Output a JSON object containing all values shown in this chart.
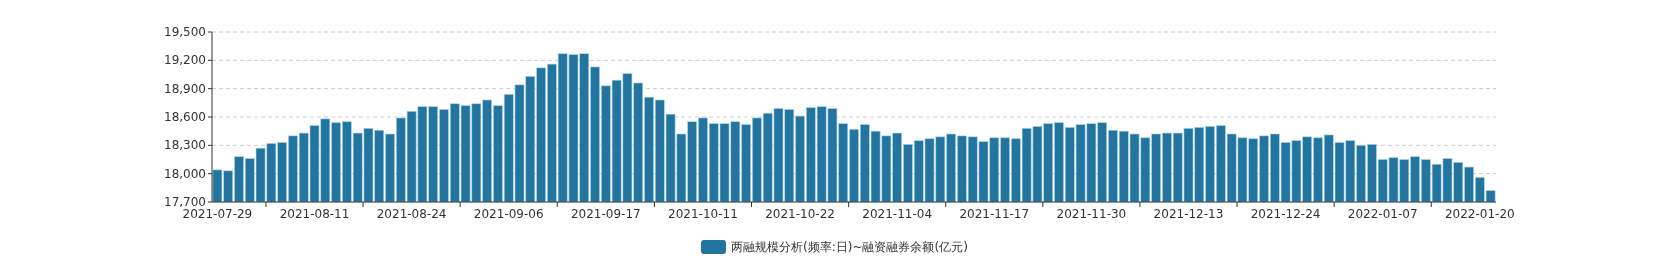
{
  "chart_data": {
    "type": "bar",
    "categories": [
      "2021-07-29",
      null,
      null,
      null,
      null,
      null,
      null,
      null,
      null,
      "2021-08-11",
      null,
      null,
      null,
      null,
      null,
      null,
      null,
      null,
      "2021-08-24",
      null,
      null,
      null,
      null,
      null,
      null,
      null,
      null,
      "2021-09-06",
      null,
      null,
      null,
      null,
      null,
      null,
      null,
      null,
      "2021-09-17",
      null,
      null,
      null,
      null,
      null,
      null,
      null,
      null,
      "2021-10-11",
      null,
      null,
      null,
      null,
      null,
      null,
      null,
      null,
      "2021-10-22",
      null,
      null,
      null,
      null,
      null,
      null,
      null,
      null,
      "2021-11-04",
      null,
      null,
      null,
      null,
      null,
      null,
      null,
      null,
      "2021-11-17",
      null,
      null,
      null,
      null,
      null,
      null,
      null,
      null,
      "2021-11-30",
      null,
      null,
      null,
      null,
      null,
      null,
      null,
      null,
      "2021-12-13",
      null,
      null,
      null,
      null,
      null,
      null,
      null,
      null,
      "2021-12-24",
      null,
      null,
      null,
      null,
      null,
      null,
      null,
      null,
      "2022-01-07",
      null,
      null,
      null,
      null,
      null,
      null,
      null,
      null,
      "2022-01-20",
      null
    ],
    "series": [
      {
        "name": "两融规模分析(频率:日)~融资融券余额(亿元)",
        "color": "#23749f",
        "values": [
          18040,
          18030,
          18180,
          18160,
          18270,
          18320,
          18330,
          18400,
          18430,
          18510,
          18580,
          18540,
          18550,
          18430,
          18480,
          18460,
          18420,
          18590,
          18660,
          18710,
          18710,
          18680,
          18740,
          18720,
          18740,
          18780,
          18720,
          18840,
          18940,
          19030,
          19120,
          19160,
          19270,
          19260,
          19270,
          19130,
          18930,
          18990,
          19060,
          18960,
          18810,
          18780,
          18630,
          18420,
          18550,
          18590,
          18530,
          18530,
          18550,
          18520,
          18590,
          18640,
          18690,
          18680,
          18610,
          18700,
          18710,
          18690,
          18530,
          18470,
          18520,
          18450,
          18400,
          18430,
          18310,
          18350,
          18370,
          18390,
          18420,
          18400,
          18390,
          18340,
          18380,
          18380,
          18370,
          18480,
          18500,
          18530,
          18540,
          18490,
          18520,
          18530,
          18540,
          18460,
          18450,
          18420,
          18380,
          18420,
          18430,
          18430,
          18480,
          18490,
          18500,
          18510,
          18420,
          18380,
          18370,
          18400,
          18420,
          18330,
          18350,
          18390,
          18380,
          18410,
          18330,
          18350,
          18300,
          18310,
          18150,
          18170,
          18150,
          18180,
          18150,
          18100,
          18160,
          18120,
          18070,
          17960,
          17820
        ]
      }
    ],
    "ylim": [
      17700,
      19500
    ],
    "yticks": [
      {
        "value": 17700,
        "label": "17,700"
      },
      {
        "value": 18000,
        "label": "18,000"
      },
      {
        "value": 18300,
        "label": "18,300"
      },
      {
        "value": 18600,
        "label": "18,600"
      },
      {
        "value": 18900,
        "label": "18,900"
      },
      {
        "value": 19200,
        "label": "19,200"
      },
      {
        "value": 19500,
        "label": "19,500"
      }
    ],
    "grid": "y",
    "legend": "bottom"
  }
}
